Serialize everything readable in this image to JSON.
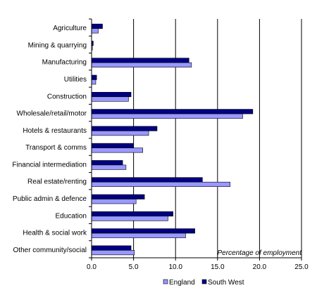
{
  "chart_data": {
    "type": "bar",
    "orientation": "horizontal",
    "categories": [
      "Agriculture",
      "Mining & quarrying",
      "Manufacturing",
      "Utilities",
      "Construction",
      "Wholesale/retail/motor",
      "Hotels & restaurants",
      "Transport & comms",
      "Financial intermediation",
      "Real estate/renting",
      "Public admin & defence",
      "Education",
      "Health & social work",
      "Other community/social"
    ],
    "series": [
      {
        "name": "England",
        "color": "#9999ff",
        "values": [
          0.8,
          0.1,
          11.9,
          0.5,
          4.4,
          18.0,
          6.8,
          6.1,
          4.1,
          16.5,
          5.3,
          9.1,
          11.2,
          5.1
        ]
      },
      {
        "name": "South West",
        "color": "#000080",
        "values": [
          1.3,
          0.2,
          11.6,
          0.6,
          4.7,
          19.2,
          7.8,
          5.0,
          3.7,
          13.2,
          6.3,
          9.7,
          12.3,
          4.7
        ]
      }
    ],
    "xlabel": "Percentage of employment",
    "xlim": [
      0,
      25
    ],
    "xticks": [
      "0.0",
      "5.0",
      "10.0",
      "15.0",
      "20.0",
      "25.0"
    ],
    "grid": "vertical",
    "legend": "bottom"
  }
}
